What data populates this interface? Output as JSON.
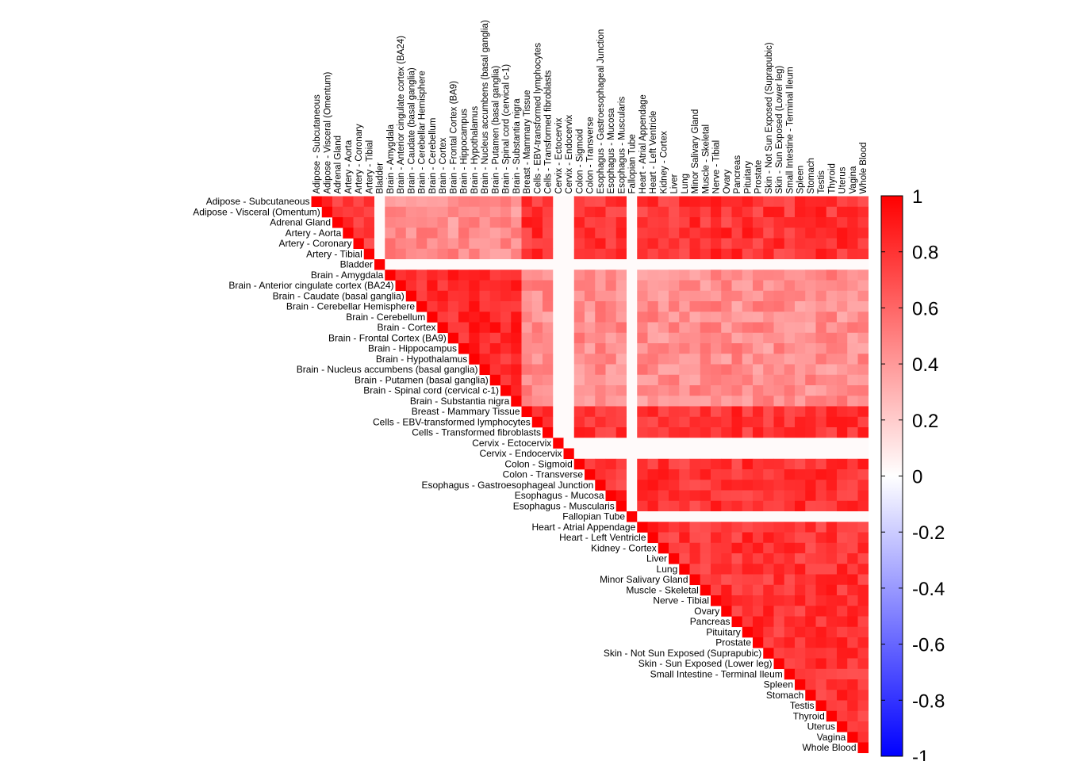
{
  "chart_data": {
    "type": "heatmap",
    "title": "",
    "xlabel": "",
    "ylabel": "",
    "layout": "upper-triangle correlation matrix",
    "labels": [
      "Adipose - Subcutaneous",
      "Adipose - Visceral (Omentum)",
      "Adrenal Gland",
      "Artery - Aorta",
      "Artery - Coronary",
      "Artery - Tibial",
      "Bladder",
      "Brain - Amygdala",
      "Brain - Anterior cingulate cortex (BA24)",
      "Brain - Caudate (basal ganglia)",
      "Brain - Cerebellar Hemisphere",
      "Brain - Cerebellum",
      "Brain - Cortex",
      "Brain - Frontal Cortex (BA9)",
      "Brain - Hippocampus",
      "Brain - Hypothalamus",
      "Brain - Nucleus accumbens (basal ganglia)",
      "Brain - Putamen (basal ganglia)",
      "Brain - Spinal cord (cervical c-1)",
      "Brain - Substantia nigra",
      "Breast - Mammary Tissue",
      "Cells - EBV-transformed lymphocytes",
      "Cells - Transformed fibroblasts",
      "Cervix - Ectocervix",
      "Cervix - Endocervix",
      "Colon - Sigmoid",
      "Colon - Transverse",
      "Esophagus - Gastroesophageal Junction",
      "Esophagus - Mucosa",
      "Esophagus - Muscularis",
      "Fallopian Tube",
      "Heart - Atrial Appendage",
      "Heart - Left Ventricle",
      "Kidney - Cortex",
      "Liver",
      "Lung",
      "Minor Salivary Gland",
      "Muscle - Skeletal",
      "Nerve - Tibial",
      "Ovary",
      "Pancreas",
      "Pituitary",
      "Prostate",
      "Skin - Not Sun Exposed (Suprapubic)",
      "Skin - Sun Exposed (Lower leg)",
      "Small Intestine - Terminal Ileum",
      "Spleen",
      "Stomach",
      "Testis",
      "Thyroid",
      "Uterus",
      "Vagina",
      "Whole Blood"
    ],
    "values_note": "Cell (i,j) with j>=i colored by correlation; diagonal = 1. Bladder, Cervix - Ectocervix, Cervix - Endocervix, Fallopian Tube rows/columns ~0. Brain vs non-brain ~0.3-0.6; most other pairs ~0.7-0.9.",
    "group_values": {
      "diagonal": 1,
      "near_zero_tissues": [
        "Bladder",
        "Cervix - Ectocervix",
        "Cervix - Endocervix",
        "Fallopian Tube"
      ],
      "near_zero_value": 0.02,
      "brain_brain": 0.85,
      "brain_vs_other": 0.45,
      "other_other": 0.8
    },
    "colorbar": {
      "min": -1,
      "max": 1,
      "low_color": "#0000ff",
      "mid_color": "#ffffff",
      "high_color": "#ff0000",
      "ticks": [
        "1",
        "0.8",
        "0.6",
        "0.4",
        "0.2",
        "0",
        "-0.2",
        "-0.4",
        "-0.6",
        "-0.8",
        "-1"
      ]
    },
    "grid": false,
    "legend": "colorbar-right"
  }
}
